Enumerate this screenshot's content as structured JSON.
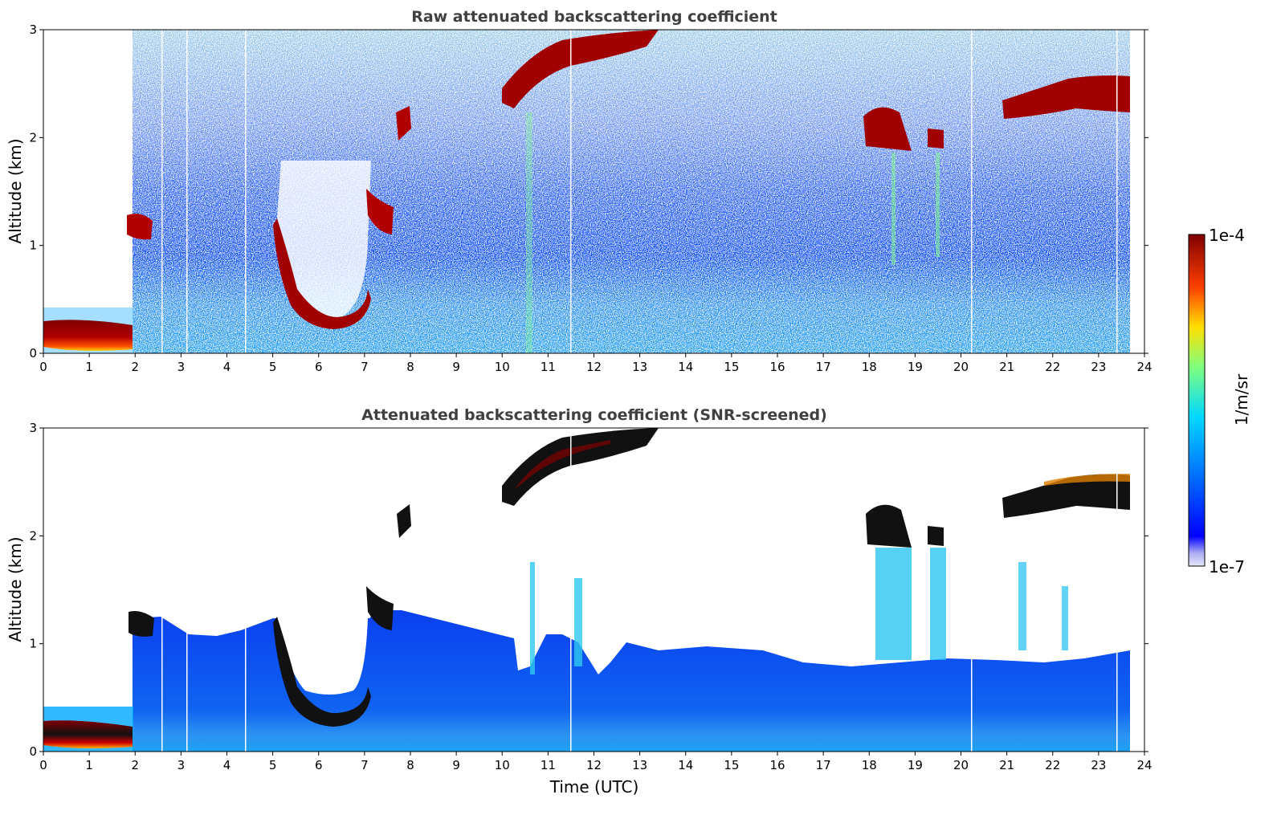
{
  "chart_data": [
    {
      "type": "heatmap",
      "title": "Raw attenuated backscattering coefficient",
      "xlabel": "",
      "ylabel": "Altitude (km)",
      "xlim": [
        0,
        24
      ],
      "ylim": [
        0,
        3
      ],
      "xticks": [
        "0",
        "1",
        "2",
        "3",
        "4",
        "5",
        "6",
        "7",
        "8",
        "9",
        "10",
        "11",
        "12",
        "13",
        "14",
        "15",
        "16",
        "17",
        "18",
        "19",
        "20",
        "21",
        "22",
        "23",
        "24"
      ],
      "yticks": [
        "0",
        "1",
        "2",
        "3"
      ],
      "data_extent_hours": [
        0,
        23.7
      ],
      "features": [
        {
          "time": [
            0.0,
            1.95
          ],
          "altitude": [
            0.05,
            0.3
          ],
          "level": "1e-4"
        },
        {
          "time": [
            1.9,
            2.3
          ],
          "altitude": [
            1.05,
            1.3
          ],
          "level": "1e-4"
        },
        {
          "time": [
            5.1,
            7.1
          ],
          "altitude": [
            0.3,
            1.2
          ],
          "level": "1e-4"
        },
        {
          "time": [
            7.0,
            7.6
          ],
          "altitude": [
            1.1,
            1.55
          ],
          "level": "1e-4"
        },
        {
          "time": [
            7.7,
            8.0
          ],
          "altitude": [
            1.95,
            2.25
          ],
          "level": "1e-4"
        },
        {
          "time": [
            10.0,
            13.4
          ],
          "altitude": [
            2.3,
            3.0
          ],
          "level": "1e-4"
        },
        {
          "time": [
            17.9,
            18.9
          ],
          "altitude": [
            1.9,
            2.3
          ],
          "level": "1e-4"
        },
        {
          "time": [
            19.3,
            19.7
          ],
          "altitude": [
            1.9,
            2.05
          ],
          "level": "1e-4"
        },
        {
          "time": [
            20.9,
            23.7
          ],
          "altitude": [
            2.1,
            2.6
          ],
          "level": "1e-4"
        }
      ]
    },
    {
      "type": "heatmap",
      "title": "Attenuated backscattering coefficient (SNR-screened)",
      "xlabel": "Time (UTC)",
      "ylabel": "Altitude (km)",
      "xlim": [
        0,
        24
      ],
      "ylim": [
        0,
        3
      ],
      "xticks": [
        "0",
        "1",
        "2",
        "3",
        "4",
        "5",
        "6",
        "7",
        "8",
        "9",
        "10",
        "11",
        "12",
        "13",
        "14",
        "15",
        "16",
        "17",
        "18",
        "19",
        "20",
        "21",
        "22",
        "23",
        "24"
      ],
      "yticks": [
        "0",
        "1",
        "2",
        "3"
      ],
      "data_extent_hours": [
        0,
        23.7
      ]
    }
  ],
  "colorbar": {
    "label": "1/m/sr",
    "max_label": "1e-4",
    "min_label": "1e-7",
    "scale": "log",
    "colormap": "jet"
  }
}
